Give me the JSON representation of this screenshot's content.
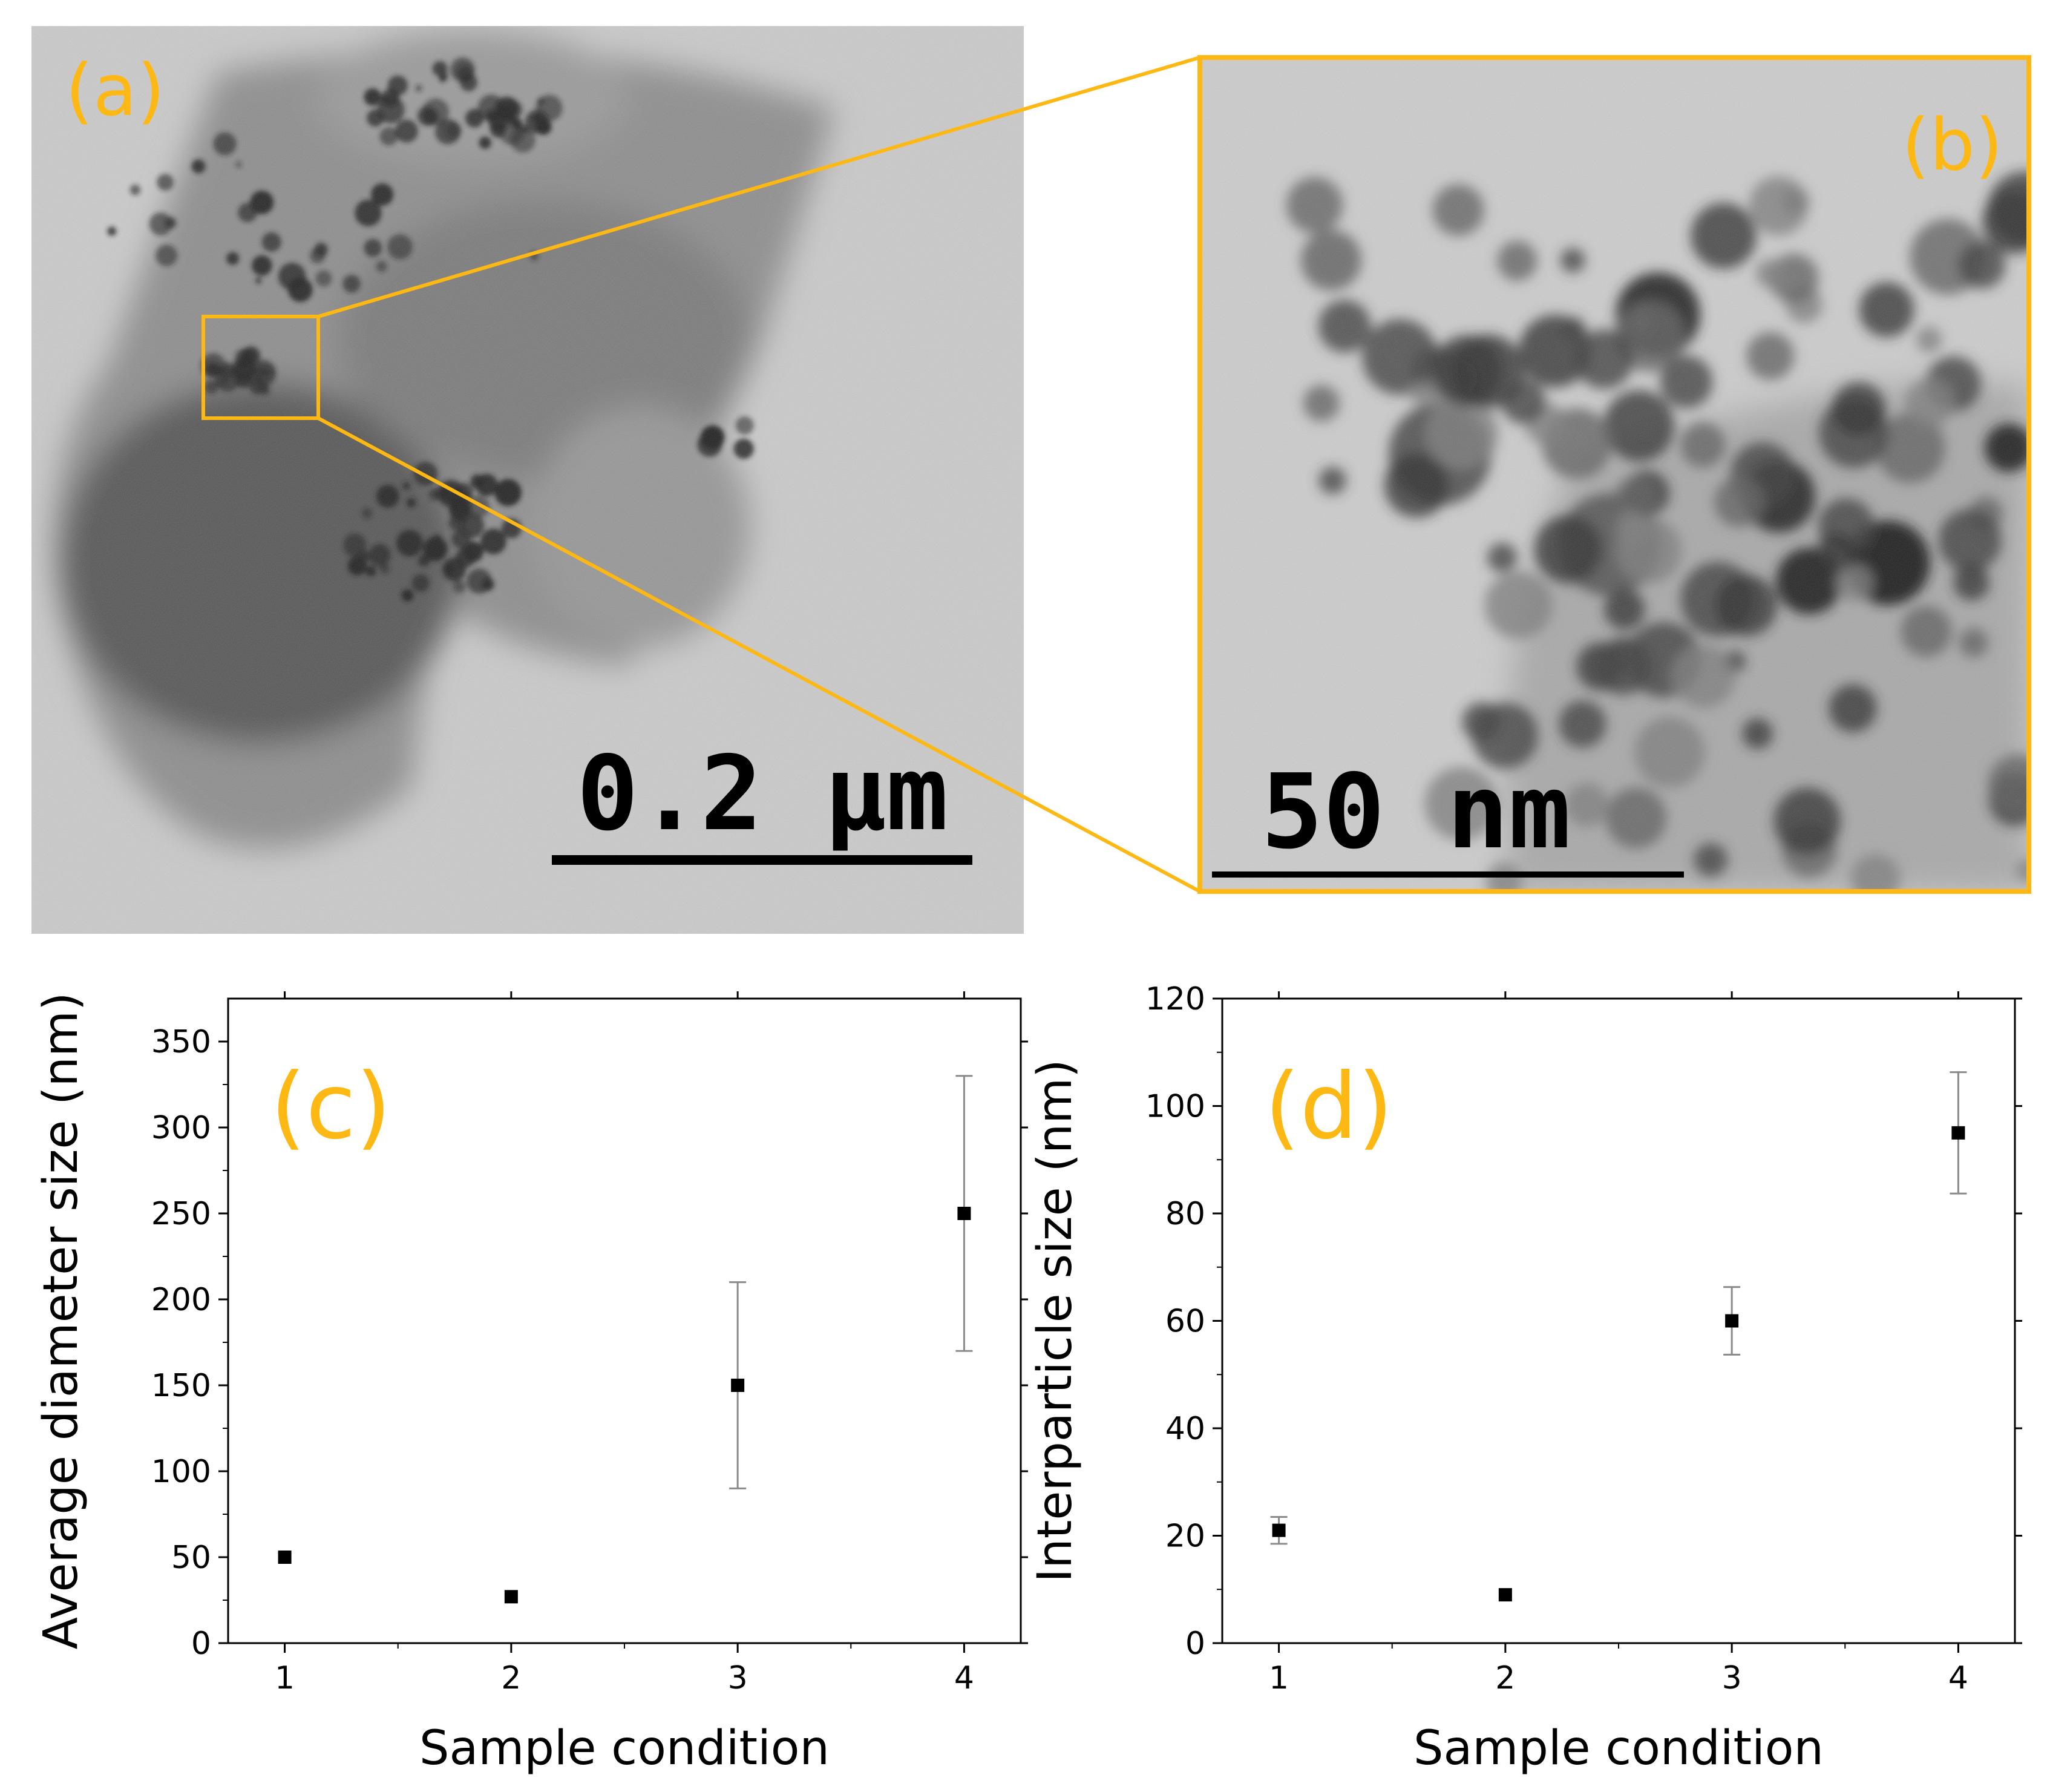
{
  "colors": {
    "accent": "#FDB813",
    "tem_background": "#c9c9c9",
    "particle": "#1a1a1a",
    "axis": "#000000",
    "errorbar": "#8a8a8a"
  },
  "panels": {
    "a": {
      "label": "(a)",
      "scalebar": "0.2 µm"
    },
    "b": {
      "label": "(b)",
      "scalebar": "50 nm"
    }
  },
  "chart_data": [
    {
      "panel_label": "(c)",
      "type": "scatter",
      "title": "",
      "xlabel": "Sample condition",
      "ylabel": "Average diameter size (nm)",
      "x_ticks": [
        "1",
        "2",
        "3",
        "4"
      ],
      "y_ticks": [
        "0",
        "50",
        "100",
        "150",
        "200",
        "250",
        "300",
        "350"
      ],
      "xlim": [
        0.75,
        4.25
      ],
      "ylim": [
        0,
        375
      ],
      "x": [
        1,
        2,
        3,
        4
      ],
      "y": [
        50,
        27,
        150,
        250
      ],
      "err": [
        0,
        0,
        60,
        80
      ],
      "marker": "square"
    },
    {
      "panel_label": "(d)",
      "type": "scatter",
      "title": "",
      "xlabel": "Sample condition",
      "ylabel": "Interparticle size (nm)",
      "x_ticks": [
        "1",
        "2",
        "3",
        "4"
      ],
      "y_ticks": [
        "0",
        "20",
        "40",
        "60",
        "80",
        "100",
        "120"
      ],
      "xlim": [
        0.75,
        4.25
      ],
      "ylim": [
        0,
        120
      ],
      "x": [
        1,
        2,
        3,
        4
      ],
      "y": [
        21,
        9,
        60,
        95
      ],
      "err": [
        2.5,
        0,
        6.3,
        11.3
      ],
      "marker": "square"
    }
  ]
}
